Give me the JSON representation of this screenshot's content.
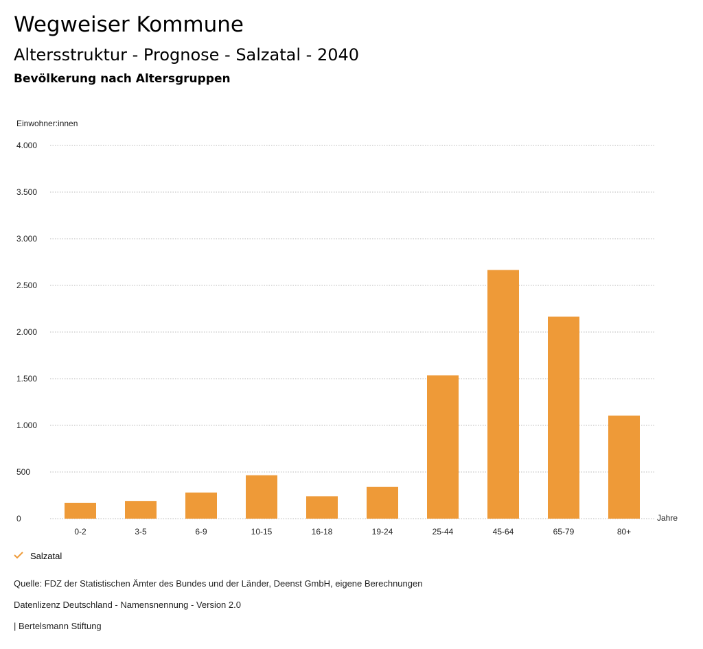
{
  "header": {
    "title": "Wegweiser Kommune",
    "subtitle": "Altersstruktur - Prognose - Salzatal - 2040",
    "section": "Bevölkerung nach Altersgruppen"
  },
  "chart_data": {
    "type": "bar",
    "ylabel": "Einwohner:innen",
    "xlabel": "Jahre",
    "ylim": [
      0,
      4000
    ],
    "yticks": [
      0,
      500,
      1000,
      1500,
      2000,
      2500,
      3000,
      3500,
      4000
    ],
    "ytick_labels": [
      "0",
      "500",
      "1.000",
      "1.500",
      "2.000",
      "2.500",
      "3.000",
      "3.500",
      "4.000"
    ],
    "categories": [
      "0-2",
      "3-5",
      "6-9",
      "10-15",
      "16-18",
      "19-24",
      "25-44",
      "45-64",
      "65-79",
      "80+"
    ],
    "series": [
      {
        "name": "Salzatal",
        "color": "#ee9a38",
        "values": [
          170,
          190,
          280,
          465,
          240,
          340,
          1535,
          2665,
          2165,
          1105
        ]
      }
    ],
    "grid": "dotted"
  },
  "legend": {
    "label": "Salzatal",
    "color": "#ee9a38"
  },
  "footer": {
    "source": "Quelle: FDZ der Statistischen Ämter des Bundes und der Länder, Deenst GmbH, eigene Berechnungen",
    "license": "Datenlizenz Deutschland - Namensnennung - Version 2.0",
    "publisher": "| Bertelsmann Stiftung"
  }
}
